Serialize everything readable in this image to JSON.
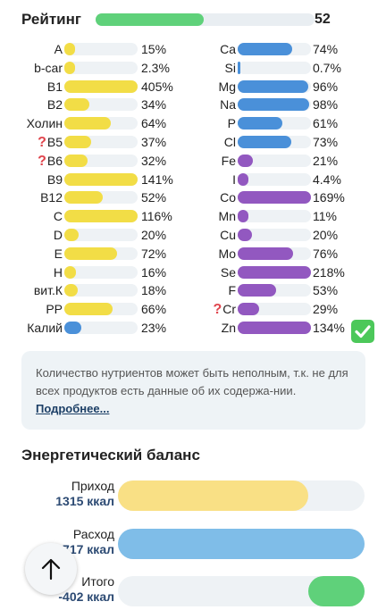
{
  "rating": {
    "label": "Рейтинг",
    "value": "52",
    "fraction": 0.52,
    "color": "#5fd17a"
  },
  "colors": {
    "yellow": "#f2dd46",
    "blue": "#4a90d9",
    "purple": "#9258c0",
    "track": "#eef2f5",
    "question": "#e0454d"
  },
  "left_nutrients": [
    {
      "name": "A",
      "pct": "15%",
      "level": 0.15,
      "color": "#f2dd46",
      "question": false
    },
    {
      "name": "b-car",
      "pct": "2.3%",
      "level": 0.023,
      "color": "#f2dd46",
      "question": false
    },
    {
      "name": "B1",
      "pct": "405%",
      "level": 1.0,
      "color": "#f2dd46",
      "question": false
    },
    {
      "name": "B2",
      "pct": "34%",
      "level": 0.34,
      "color": "#f2dd46",
      "question": false
    },
    {
      "name": "Холин",
      "pct": "64%",
      "level": 0.64,
      "color": "#f2dd46",
      "question": false
    },
    {
      "name": "B5",
      "pct": "37%",
      "level": 0.37,
      "color": "#f2dd46",
      "question": true
    },
    {
      "name": "B6",
      "pct": "32%",
      "level": 0.32,
      "color": "#f2dd46",
      "question": true
    },
    {
      "name": "B9",
      "pct": "141%",
      "level": 1.0,
      "color": "#f2dd46",
      "question": false
    },
    {
      "name": "B12",
      "pct": "52%",
      "level": 0.52,
      "color": "#f2dd46",
      "question": false
    },
    {
      "name": "C",
      "pct": "116%",
      "level": 1.0,
      "color": "#f2dd46",
      "question": false
    },
    {
      "name": "D",
      "pct": "20%",
      "level": 0.2,
      "color": "#f2dd46",
      "question": false
    },
    {
      "name": "E",
      "pct": "72%",
      "level": 0.72,
      "color": "#f2dd46",
      "question": false
    },
    {
      "name": "H",
      "pct": "16%",
      "level": 0.16,
      "color": "#f2dd46",
      "question": false
    },
    {
      "name": "вит.К",
      "pct": "18%",
      "level": 0.18,
      "color": "#f2dd46",
      "question": false
    },
    {
      "name": "PP",
      "pct": "66%",
      "level": 0.66,
      "color": "#f2dd46",
      "question": false
    },
    {
      "name": "Калий",
      "pct": "23%",
      "level": 0.23,
      "color": "#4a90d9",
      "question": false
    }
  ],
  "right_nutrients": [
    {
      "name": "Ca",
      "pct": "74%",
      "level": 0.74,
      "color": "#4a90d9",
      "question": false
    },
    {
      "name": "Si",
      "pct": "0.7%",
      "level": 0.007,
      "color": "#4a90d9",
      "question": false
    },
    {
      "name": "Mg",
      "pct": "96%",
      "level": 0.96,
      "color": "#4a90d9",
      "question": false
    },
    {
      "name": "Na",
      "pct": "98%",
      "level": 0.98,
      "color": "#4a90d9",
      "question": false
    },
    {
      "name": "P",
      "pct": "61%",
      "level": 0.61,
      "color": "#4a90d9",
      "question": false
    },
    {
      "name": "Cl",
      "pct": "73%",
      "level": 0.73,
      "color": "#4a90d9",
      "question": false
    },
    {
      "name": "Fe",
      "pct": "21%",
      "level": 0.21,
      "color": "#9258c0",
      "question": false
    },
    {
      "name": "I",
      "pct": "4.4%",
      "level": 0.044,
      "color": "#9258c0",
      "question": false
    },
    {
      "name": "Co",
      "pct": "169%",
      "level": 1.0,
      "color": "#9258c0",
      "question": false
    },
    {
      "name": "Mn",
      "pct": "11%",
      "level": 0.11,
      "color": "#9258c0",
      "question": false
    },
    {
      "name": "Cu",
      "pct": "20%",
      "level": 0.2,
      "color": "#9258c0",
      "question": false
    },
    {
      "name": "Mo",
      "pct": "76%",
      "level": 0.76,
      "color": "#9258c0",
      "question": false
    },
    {
      "name": "Se",
      "pct": "218%",
      "level": 1.0,
      "color": "#9258c0",
      "question": false
    },
    {
      "name": "F",
      "pct": "53%",
      "level": 0.53,
      "color": "#9258c0",
      "question": false
    },
    {
      "name": "Cr",
      "pct": "29%",
      "level": 0.29,
      "color": "#9258c0",
      "question": true
    },
    {
      "name": "Zn",
      "pct": "134%",
      "level": 1.0,
      "color": "#9258c0",
      "question": false
    }
  ],
  "check_icon": "checkmark-icon",
  "note": {
    "text": "Количество нутриентов может быть неполным, т.к. не для всех продуктов есть данные об их содержа-нии. ",
    "link": "Подробнее..."
  },
  "energy": {
    "title": "Энергетический баланс",
    "rows": [
      {
        "label": "Приход",
        "value": "1315 ккал",
        "level": 0.77,
        "offset": 0.0,
        "color": "#f9e085"
      },
      {
        "label": "Расход",
        "value": "1717 ккал",
        "level": 1.0,
        "offset": 0.0,
        "color": "#7fbde8"
      },
      {
        "label": "Итого",
        "value": "-402 ккал",
        "level": 0.23,
        "offset": 0.77,
        "color": "#5fd17a"
      }
    ]
  },
  "scroll_up_icon": "arrow-up-icon"
}
